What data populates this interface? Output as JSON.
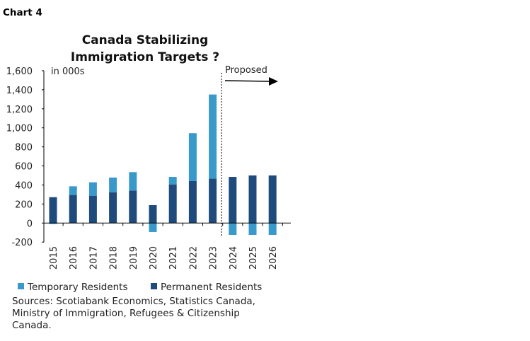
{
  "chart_label": "Chart 4",
  "chart_data": {
    "type": "bar",
    "stacked": true,
    "title": [
      "Canada Stabilizing",
      "Immigration Targets ?"
    ],
    "unit_label": "in 000s",
    "annotation": "Proposed",
    "categories": [
      "2015",
      "2016",
      "2017",
      "2018",
      "2019",
      "2020",
      "2021",
      "2022",
      "2023",
      "2024",
      "2025",
      "2026"
    ],
    "series": [
      {
        "name": "Temporary Residents",
        "color": "#3a99cb",
        "values": [
          -10,
          91,
          141,
          154,
          193,
          -94,
          79,
          503,
          884,
          -124,
          -124,
          -124
        ]
      },
      {
        "name": "Permanent Residents",
        "color": "#1f4a7c",
        "values": [
          272,
          295,
          287,
          324,
          342,
          188,
          406,
          441,
          466,
          485,
          500,
          500
        ]
      }
    ],
    "ylim": [
      -200,
      1600
    ],
    "yticks": [
      "-200",
      "0",
      "200",
      "400",
      "600",
      "800",
      "1,000",
      "1,200",
      "1,400",
      "1,600"
    ],
    "ytick_values": [
      -200,
      0,
      200,
      400,
      600,
      800,
      1000,
      1200,
      1400,
      1600
    ],
    "grid": false,
    "legend_placement": "bottom"
  },
  "sources": "Sources: Scotiabank Economics, Statistics Canada, Ministry of Immigration, Refugees & Citizenship Canada."
}
